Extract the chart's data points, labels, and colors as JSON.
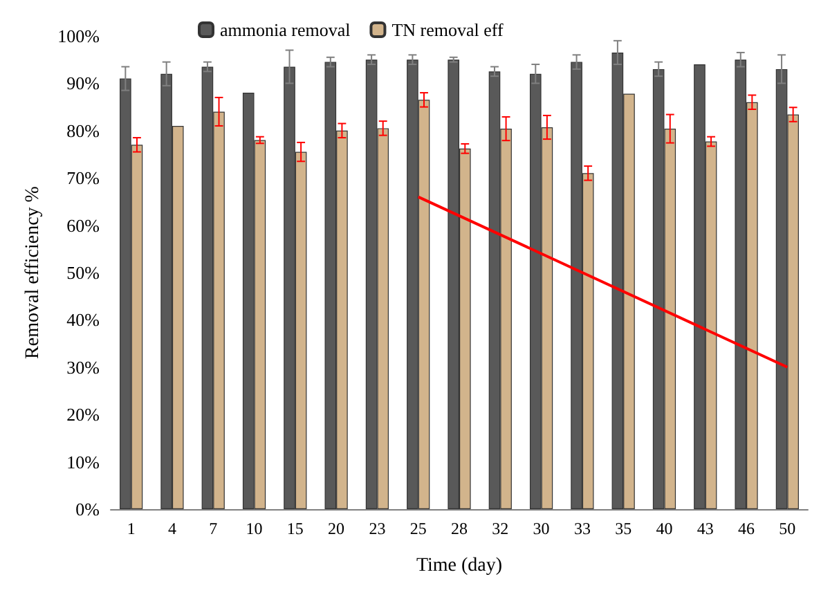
{
  "chart_data": {
    "type": "bar",
    "xlabel": "Time (day)",
    "ylabel": "Removal efficiency %",
    "categories": [
      "1",
      "4",
      "7",
      "10",
      "15",
      "20",
      "23",
      "25",
      "28",
      "32",
      "30",
      "33",
      "35",
      "40",
      "43",
      "46",
      "50"
    ],
    "series": [
      {
        "name": "ammonia removal",
        "color": "#595959",
        "values": [
          91,
          92,
          93.5,
          88,
          93.5,
          94.5,
          95,
          95,
          95,
          92.5,
          92,
          94.5,
          96.5,
          93,
          94,
          95,
          93
        ],
        "errors": [
          2.5,
          2.5,
          1,
          null,
          3.5,
          1,
          1,
          1,
          0.5,
          1,
          2,
          1.5,
          2.5,
          1.5,
          null,
          1.5,
          3
        ]
      },
      {
        "name": "TN removal eff",
        "color": "#d2b48c",
        "values": [
          77,
          81,
          84,
          78,
          75.5,
          80,
          80.5,
          86.5,
          76.2,
          80.4,
          80.7,
          71,
          87.8,
          80.4,
          77.7,
          86,
          83.4
        ],
        "errors": [
          1.5,
          null,
          3,
          0.7,
          2,
          1.5,
          1.5,
          1.5,
          1,
          2.5,
          2.5,
          1.5,
          null,
          3,
          1,
          1.5,
          1.5
        ]
      },
      {
        "type": "line",
        "color": "#ff0000",
        "x": [
          "25",
          "50"
        ],
        "values": [
          66,
          30
        ]
      }
    ],
    "ylim": [
      0,
      100
    ],
    "yticks": [
      {
        "value": 0,
        "label": "0%"
      },
      {
        "value": 10,
        "label": "10%"
      },
      {
        "value": 20,
        "label": "20%"
      },
      {
        "value": 30,
        "label": "30%"
      },
      {
        "value": 40,
        "label": "40%"
      },
      {
        "value": 50,
        "label": "50%"
      },
      {
        "value": 60,
        "label": "60%"
      },
      {
        "value": 70,
        "label": "70%"
      },
      {
        "value": 80,
        "label": "80%"
      },
      {
        "value": 90,
        "label": "90%"
      },
      {
        "value": 100,
        "label": "100%"
      }
    ],
    "grid": false,
    "legend": "top",
    "marker": "none"
  }
}
